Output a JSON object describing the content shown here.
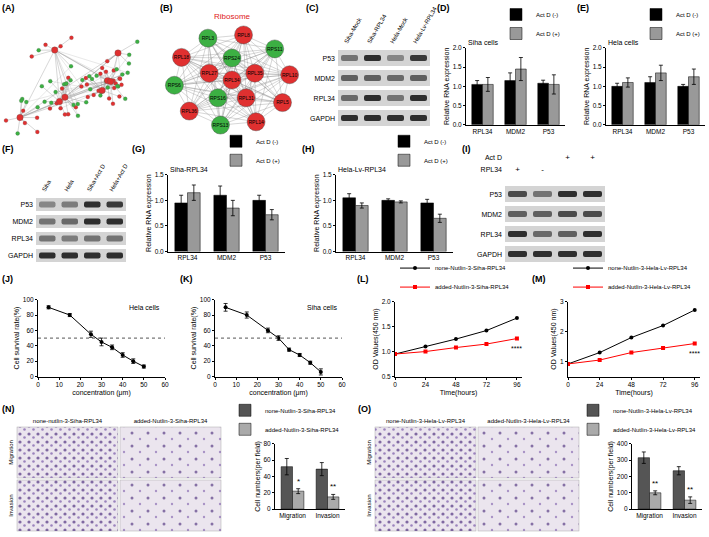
{
  "network": {
    "label": "(A)"
  },
  "ribosome": {
    "label": "(B)",
    "title": "Ribosome",
    "nodes": [
      {
        "label": "RPL34",
        "color": "#e03030"
      },
      {
        "label": "RPS24",
        "color": "#3cb043"
      },
      {
        "label": "RPL35",
        "color": "#e03030"
      },
      {
        "label": "RPL31",
        "color": "#e03030"
      },
      {
        "label": "RPS16",
        "color": "#3cb043"
      },
      {
        "label": "RPL27",
        "color": "#e03030"
      },
      {
        "label": "RPL8",
        "color": "#e03030"
      },
      {
        "label": "RPS11",
        "color": "#3cb043"
      },
      {
        "label": "RPL10",
        "color": "#e03030"
      },
      {
        "label": "RPL5",
        "color": "#e03030"
      },
      {
        "label": "RPL14",
        "color": "#e03030"
      },
      {
        "label": "RPS13",
        "color": "#3cb043"
      },
      {
        "label": "RPL36",
        "color": "#e03030"
      },
      {
        "label": "RPS6",
        "color": "#3cb043"
      },
      {
        "label": "RPL18",
        "color": "#e03030"
      },
      {
        "label": "RPL3",
        "color": "#3cb043"
      }
    ]
  },
  "blots": [
    {
      "label": "(C)",
      "lanes": [
        "Siha-Mock",
        "Siha-RPL34",
        "Hela-Mock",
        "Hela-Lv-RPL34"
      ],
      "rows": [
        {
          "name": "P53",
          "bands": [
            0.5,
            0.85,
            0.4,
            0.8
          ]
        },
        {
          "name": "MDM2",
          "bands": [
            0.6,
            0.6,
            0.55,
            0.6
          ]
        },
        {
          "name": "RPL34",
          "bands": [
            0.55,
            0.85,
            0.5,
            0.85
          ]
        },
        {
          "name": "GAPDH",
          "bands": [
            0.85,
            0.85,
            0.85,
            0.85
          ]
        }
      ]
    },
    {
      "label": "(F)",
      "lanes": [
        "Siha",
        "Hela",
        "Siha+Act D",
        "Hela+Act D"
      ],
      "rows": [
        {
          "name": "P53",
          "bands": [
            0.4,
            0.45,
            0.85,
            0.8
          ]
        },
        {
          "name": "MDM2",
          "bands": [
            0.5,
            0.55,
            0.85,
            0.85
          ]
        },
        {
          "name": "RPL34",
          "bands": [
            0.5,
            0.45,
            0.5,
            0.5
          ]
        },
        {
          "name": "GAPDH",
          "bands": [
            0.85,
            0.85,
            0.85,
            0.85
          ]
        }
      ]
    },
    {
      "label": "(I)",
      "conditions": [
        {
          "name": "Act D",
          "marks": [
            null,
            null,
            "+",
            "+"
          ]
        },
        {
          "name": "RPL34",
          "marks": [
            "+",
            "-",
            null,
            null
          ]
        }
      ],
      "rows": [
        {
          "name": "P53",
          "bands": [
            0.7,
            0.5,
            0.85,
            0.85
          ]
        },
        {
          "name": "MDM2",
          "bands": [
            0.6,
            0.6,
            0.7,
            0.7
          ]
        },
        {
          "name": "RPL34",
          "bands": [
            0.85,
            0.55,
            0.6,
            0.85
          ]
        },
        {
          "name": "GAPDH",
          "bands": [
            0.85,
            0.85,
            0.85,
            0.85
          ]
        }
      ]
    }
  ],
  "micrographs": [
    {
      "label": "(N)",
      "columns": [
        "none-nutlin-3-Siha-RPL34",
        "added-Nutlin-3-Siha-RPL34"
      ],
      "rows": [
        "Migration",
        "Invasion"
      ]
    },
    {
      "label": "(O)",
      "columns": [
        "none-Nutlin-3-Hela-Lv-RPL34",
        "added-Nutlin-3-Hela-Lv-RPL34"
      ],
      "rows": [
        "Migration",
        "Invasion"
      ]
    }
  ],
  "chart_data": [
    {
      "type": "bar",
      "panel_label": "(D)",
      "title": "Siha cells",
      "y_label": "Relative RNA expression",
      "categories": [
        "RPL34",
        "MDM2",
        "P53"
      ],
      "series": [
        {
          "name": "Act D (-)",
          "color": "#000000",
          "values": [
            1.05,
            1.15,
            1.08
          ],
          "errors": [
            0.1,
            0.2,
            0.08
          ]
        },
        {
          "name": "Act D (+)",
          "color": "#999999",
          "values": [
            1.05,
            1.45,
            1.05
          ],
          "errors": [
            0.18,
            0.3,
            0.25
          ]
        }
      ],
      "ylim": [
        0,
        2
      ],
      "yticks": [
        {
          "value": 0,
          "label": "0.0"
        },
        {
          "value": 0.5,
          "label": "0.5"
        },
        {
          "value": 1,
          "label": "1.0"
        },
        {
          "value": 1.5,
          "label": "1.5"
        },
        {
          "value": 2,
          "label": "2.0"
        }
      ],
      "legend": "top right"
    },
    {
      "type": "bar",
      "panel_label": "(E)",
      "title": "Hela cells",
      "y_label": "Relative RNA expression",
      "categories": [
        "RPL34",
        "MDM2",
        "P53"
      ],
      "series": [
        {
          "name": "Act D (-)",
          "color": "#000000",
          "values": [
            1.0,
            1.1,
            1.0
          ],
          "errors": [
            0.08,
            0.15,
            0.05
          ]
        },
        {
          "name": "Act D (+)",
          "color": "#999999",
          "values": [
            1.1,
            1.35,
            1.25
          ],
          "errors": [
            0.12,
            0.2,
            0.2
          ]
        }
      ],
      "ylim": [
        0,
        2
      ],
      "yticks": [
        {
          "value": 0,
          "label": "0.0"
        },
        {
          "value": 0.5,
          "label": "0.5"
        },
        {
          "value": 1,
          "label": "1.0"
        },
        {
          "value": 1.5,
          "label": "1.5"
        },
        {
          "value": 2,
          "label": "2.0"
        }
      ],
      "legend": "top right"
    },
    {
      "type": "bar",
      "panel_label": "(G)",
      "title": "Siha-RPL34",
      "y_label": "Relative RNA expression",
      "categories": [
        "RPL34",
        "MDM2",
        "P53"
      ],
      "series": [
        {
          "name": "Act D (-)",
          "color": "#000000",
          "values": [
            0.95,
            1.1,
            1.0
          ],
          "errors": [
            0.15,
            0.18,
            0.1
          ]
        },
        {
          "name": "Act D (+)",
          "color": "#999999",
          "values": [
            1.15,
            0.85,
            0.72
          ],
          "errors": [
            0.15,
            0.15,
            0.1
          ]
        }
      ],
      "ylim": [
        0,
        1.5
      ],
      "yticks": [
        {
          "value": 0,
          "label": "0.0"
        },
        {
          "value": 0.5,
          "label": "0.5"
        },
        {
          "value": 1,
          "label": "1.0"
        },
        {
          "value": 1.5,
          "label": "1.5"
        }
      ],
      "legend": "top right"
    },
    {
      "type": "bar",
      "panel_label": "(H)",
      "title": "Hela-Lv-RPL34",
      "y_label": "Relative RNA expression",
      "categories": [
        "RPL34",
        "MDM2",
        "P53"
      ],
      "series": [
        {
          "name": "Act D (-)",
          "color": "#000000",
          "values": [
            1.05,
            1.0,
            0.95
          ],
          "errors": [
            0.08,
            0.03,
            0.07
          ]
        },
        {
          "name": "Act D (+)",
          "color": "#999999",
          "values": [
            0.9,
            0.97,
            0.65
          ],
          "errors": [
            0.05,
            0.02,
            0.08
          ]
        }
      ],
      "ylim": [
        0,
        1.5
      ],
      "yticks": [
        {
          "value": 0,
          "label": "0.0"
        },
        {
          "value": 0.5,
          "label": "0.5"
        },
        {
          "value": 1,
          "label": "1.0"
        },
        {
          "value": 1.5,
          "label": "1.5"
        }
      ],
      "legend": "top right"
    },
    {
      "type": "line",
      "panel_label": "(J)",
      "title": "Hela cells",
      "x_label": "concentration (μm)",
      "y_label": "Cell survival rate(%)",
      "x": [
        5,
        15,
        25,
        30,
        35,
        40,
        45,
        50
      ],
      "series": [
        {
          "color": "#000000",
          "marker": "circle",
          "values": [
            90,
            80,
            55,
            45,
            38,
            28,
            20,
            13
          ],
          "errors": [
            2,
            2,
            4,
            5,
            3,
            3,
            3,
            2
          ]
        }
      ],
      "threshold": 50,
      "xlim": [
        0,
        60
      ],
      "xticks": [
        0,
        10,
        20,
        30,
        40,
        50,
        60
      ],
      "ylim": [
        0,
        100
      ],
      "yticks": [
        0,
        20,
        40,
        60,
        80,
        100
      ]
    },
    {
      "type": "line",
      "panel_label": "(K)",
      "title": "Siha cells",
      "x_label": "concentration (μm)",
      "y_label": "Cell survival rate(%)",
      "x": [
        5,
        15,
        25,
        30,
        35,
        40,
        45,
        50
      ],
      "series": [
        {
          "color": "#000000",
          "marker": "circle",
          "values": [
            90,
            80,
            60,
            50,
            35,
            28,
            18,
            6
          ],
          "errors": [
            5,
            4,
            3,
            3,
            2,
            2,
            2,
            4
          ]
        }
      ],
      "threshold": 50,
      "xlim": [
        0,
        60
      ],
      "xticks": [
        0,
        10,
        20,
        30,
        40,
        50,
        60
      ],
      "ylim": [
        0,
        100
      ],
      "yticks": [
        0,
        20,
        40,
        60,
        80,
        100
      ]
    },
    {
      "type": "line",
      "panel_label": "(L)",
      "x_label": "Time(hours)",
      "y_label": "OD Values(450 nm)",
      "x": [
        0,
        24,
        48,
        72,
        96
      ],
      "series": [
        {
          "name": "none-Nutlin-3-Siha-RPL34",
          "color": "#000000",
          "marker": "circle",
          "values": [
            0.95,
            1.1,
            1.25,
            1.42,
            1.67
          ]
        },
        {
          "name": "added-Nutlin-3-Siha-RPL34",
          "color": "#ff0000",
          "marker": "square",
          "values": [
            0.95,
            1.0,
            1.08,
            1.15,
            1.26
          ]
        }
      ],
      "annotations": [
        {
          "text": "****",
          "x": 96,
          "series": "added-Nutlin-3-Siha-RPL34"
        }
      ],
      "xlim": [
        0,
        100
      ],
      "xticks": [
        0,
        24,
        48,
        72,
        96
      ],
      "ylim": [
        0.5,
        2
      ],
      "yticks": [
        {
          "value": 0.5,
          "label": "0.5"
        },
        {
          "value": 1,
          "label": "1.0"
        },
        {
          "value": 1.5,
          "label": "1.5"
        },
        {
          "value": 2,
          "label": "2.0"
        }
      ],
      "legend": "top left"
    },
    {
      "type": "line",
      "panel_label": "(M)",
      "x_label": "Time(hours)",
      "y_label": "OD Values(450 nm)",
      "x": [
        0,
        24,
        48,
        72,
        96
      ],
      "series": [
        {
          "name": "none-Nutlin-3-Hela-Lv-RPL34",
          "color": "#000000",
          "marker": "circle",
          "values": [
            0.92,
            1.3,
            1.8,
            2.2,
            2.72
          ]
        },
        {
          "name": "added-Nutlin-3-Hela-Lv-RPL34",
          "color": "#ff0000",
          "marker": "square",
          "values": [
            0.92,
            1.05,
            1.3,
            1.45,
            1.6
          ]
        }
      ],
      "annotations": [
        {
          "text": "****",
          "x": 96,
          "series": "added-Nutlin-3-Hela-Lv-RPL34"
        }
      ],
      "xlim": [
        0,
        100
      ],
      "xticks": [
        0,
        24,
        48,
        72,
        96
      ],
      "ylim": [
        0.5,
        3
      ],
      "yticks": [
        1,
        2,
        3
      ],
      "legend": "top left"
    },
    {
      "type": "bar",
      "y_label": "Cell numbers(per field)",
      "categories": [
        "Migration",
        "Invasion"
      ],
      "series": [
        {
          "name": "none-Nutlin-3-Siha-RPL34",
          "color": "#555555",
          "values": [
            52,
            49
          ],
          "errors": [
            10,
            8
          ]
        },
        {
          "name": "added-Nutlin-3-Siha-RPL34",
          "color": "#aaaaaa",
          "values": [
            22,
            15
          ],
          "errors": [
            3,
            3
          ]
        }
      ],
      "annotations": [
        {
          "text": "*",
          "category": "Migration",
          "series": "added-Nutlin-3-Siha-RPL34"
        },
        {
          "text": "**",
          "category": "Invasion",
          "series": "added-Nutlin-3-Siha-RPL34"
        }
      ],
      "ylim": [
        0,
        80
      ],
      "yticks": [
        0,
        20,
        40,
        60,
        80
      ],
      "legend": "top right"
    },
    {
      "type": "bar",
      "y_label": "Cell numbers(per field)",
      "categories": [
        "Migration",
        "Invasion"
      ],
      "series": [
        {
          "name": "none-Nutlin-3-Hela-Lv-RPL34",
          "color": "#555555",
          "values": [
            315,
            235
          ],
          "errors": [
            35,
            25
          ]
        },
        {
          "name": "added-Nutlin-3-Hela-Lv-RPL34",
          "color": "#aaaaaa",
          "values": [
            100,
            55
          ],
          "errors": [
            12,
            20
          ]
        }
      ],
      "annotations": [
        {
          "text": "**",
          "category": "Migration",
          "series": "added-Nutlin-3-Hela-Lv-RPL34"
        },
        {
          "text": "**",
          "category": "Invasion",
          "series": "added-Nutlin-3-Hela-Lv-RPL34"
        }
      ],
      "ylim": [
        0,
        400
      ],
      "yticks": [
        0,
        100,
        200,
        300,
        400
      ],
      "legend": "top right"
    }
  ]
}
